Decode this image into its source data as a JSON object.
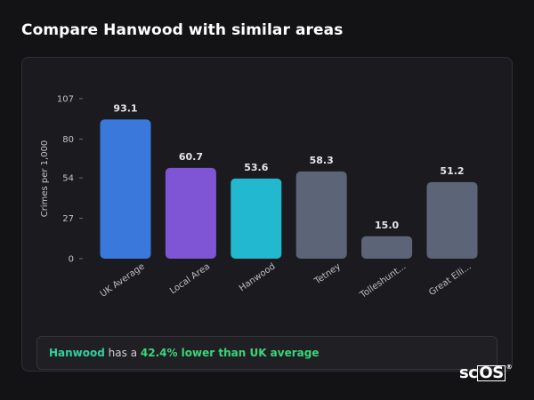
{
  "header": {
    "title": "Compare Hanwood with similar areas"
  },
  "chart_data": {
    "type": "bar",
    "title": "",
    "xlabel": "",
    "ylabel": "Crimes per 1,000",
    "ylim": [
      0,
      107
    ],
    "yticks": [
      0,
      27,
      54,
      80,
      107
    ],
    "grid": false,
    "categories": [
      "UK Average",
      "Local Area",
      "Hanwood",
      "Tetney",
      "Tolleshunt...",
      "Great Elli..."
    ],
    "values": [
      93.1,
      60.7,
      53.6,
      58.3,
      15.0,
      51.2
    ],
    "value_labels": [
      "93.1",
      "60.7",
      "53.6",
      "58.3",
      "15.0",
      "51.2"
    ],
    "colors": [
      "#3a78dc",
      "#7f55d6",
      "#22b8cf",
      "#5c6577",
      "#5c6577",
      "#5c6577"
    ]
  },
  "summary": {
    "area": "Hanwood",
    "middle": " has a ",
    "comparison": "42.4% lower than UK average"
  },
  "brand": {
    "prefix": "sc",
    "boxed": "OS",
    "mark": "®"
  }
}
